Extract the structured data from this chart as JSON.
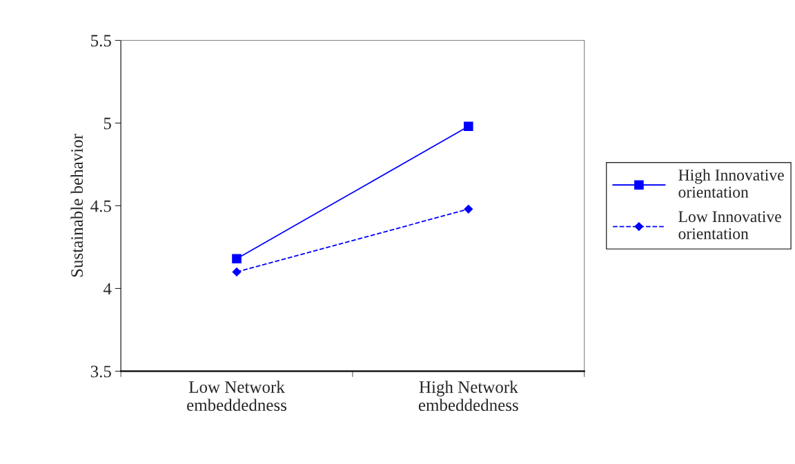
{
  "chart_data": {
    "type": "line",
    "ylabel": "Sustainable behavior",
    "categories": [
      "Low Network\nembeddedness",
      "High Network\nembeddedness"
    ],
    "series": [
      {
        "name": "High Innovative\norientation",
        "color": "#0000ff",
        "values": [
          4.18,
          4.98
        ],
        "marker": "square",
        "line_style": "solid"
      },
      {
        "name": "Low Innovative\norientation",
        "color": "#0000ff",
        "values": [
          4.1,
          4.48
        ],
        "marker": "diamond",
        "line_style": "dashed"
      }
    ],
    "ylim": [
      3.5,
      5.5
    ],
    "yticks": [
      3.5,
      4,
      4.5,
      5,
      5.5
    ],
    "grid": false,
    "legend": "right"
  }
}
